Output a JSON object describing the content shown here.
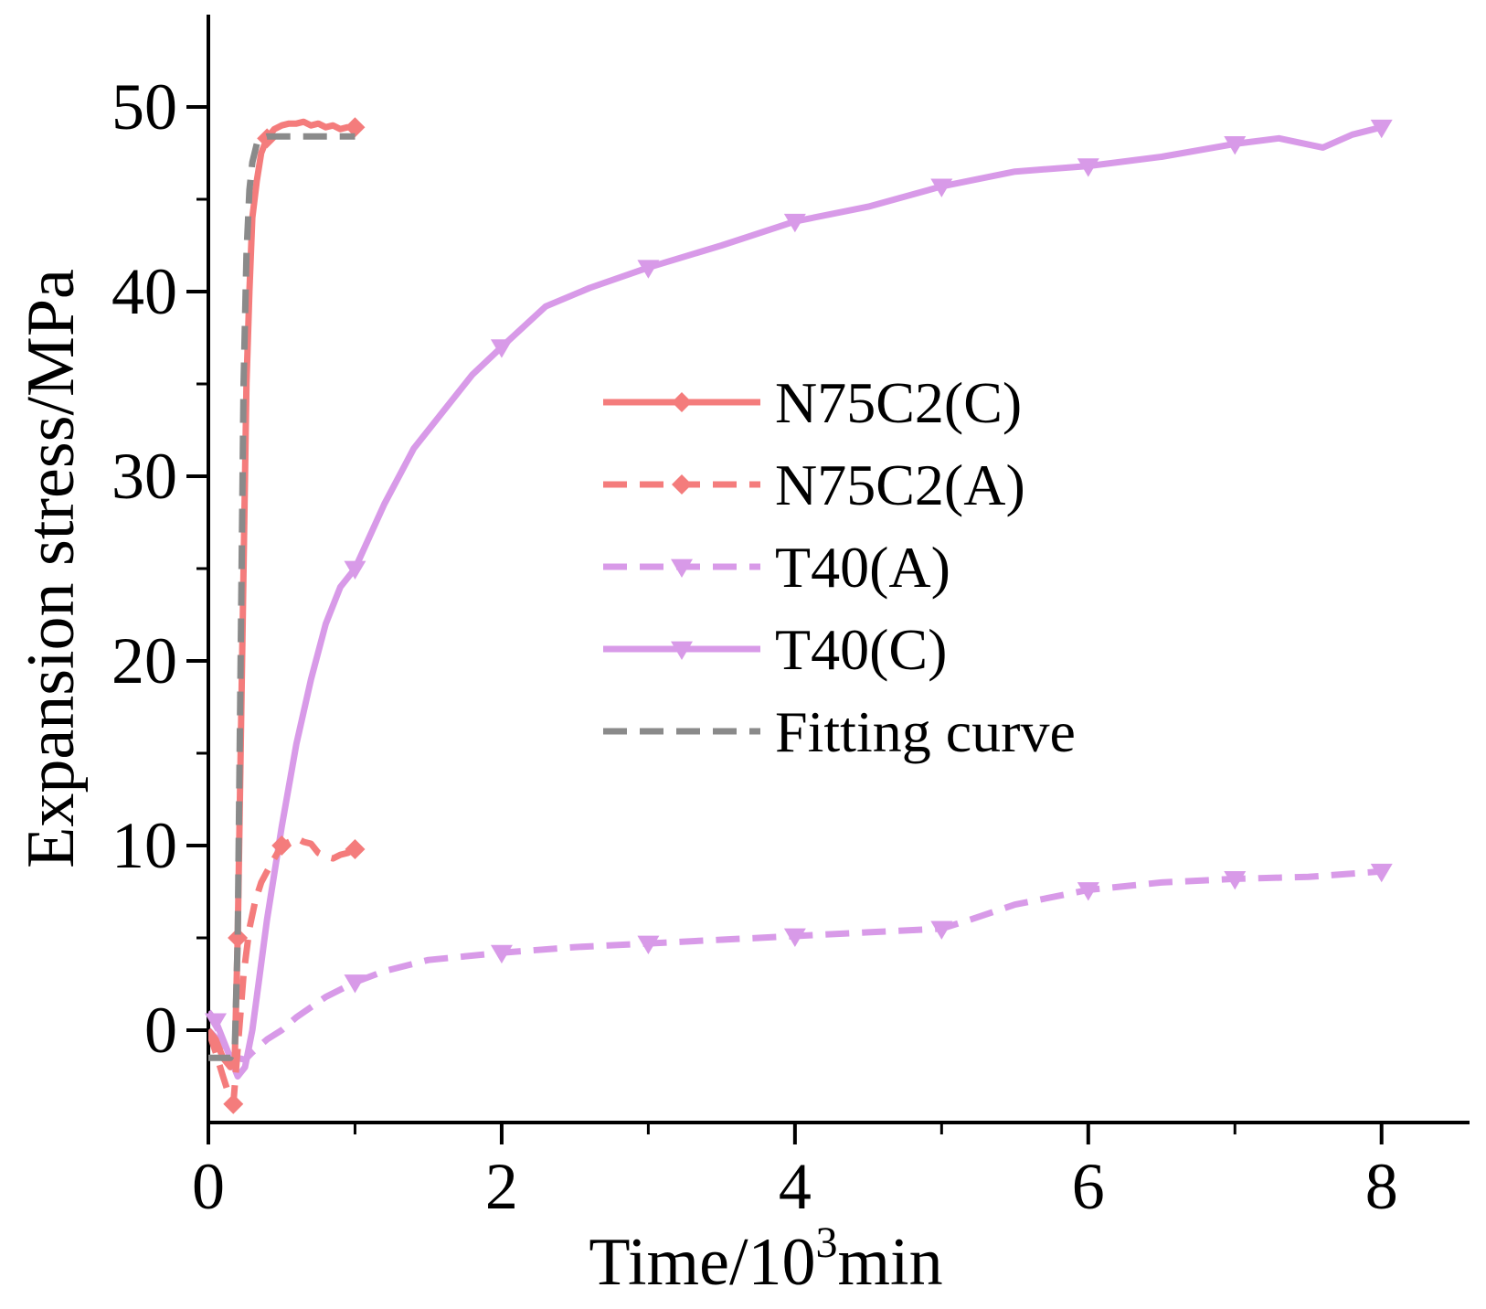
{
  "chart_data": {
    "type": "line",
    "title": "",
    "xlabel": "Time/10",
    "xlabel_superscript": "3",
    "xlabel_suffix": "min",
    "ylabel": "Expansion stress/MPa",
    "xlim": [
      0,
      8.6
    ],
    "ylim": [
      -5,
      55
    ],
    "x_ticks": [
      0,
      2,
      4,
      6,
      8
    ],
    "x_tick_labels": [
      "0",
      "2",
      "4",
      "6",
      "8"
    ],
    "y_ticks": [
      0,
      10,
      20,
      30,
      40,
      50
    ],
    "y_tick_labels": [
      "0",
      "10",
      "20",
      "30",
      "40",
      "50"
    ],
    "x_minor_ticks": [
      1,
      3,
      5,
      7
    ],
    "y_minor_ticks": [
      5,
      15,
      25,
      35,
      45
    ],
    "grid": false,
    "legend_position": "center-right",
    "series": [
      {
        "name": "N75C2(C)",
        "color": "#f47c7c",
        "dash": "solid",
        "marker": "diamond",
        "x": [
          0,
          0.05,
          0.1,
          0.15,
          0.18,
          0.2,
          0.22,
          0.24,
          0.26,
          0.28,
          0.3,
          0.33,
          0.36,
          0.4,
          0.45,
          0.5,
          0.55,
          0.6,
          0.65,
          0.7,
          0.75,
          0.8,
          0.85,
          0.9,
          0.95,
          1.0
        ],
        "y": [
          0,
          -0.5,
          -1.5,
          -2,
          -1.5,
          5,
          15,
          25,
          35,
          40,
          44,
          46,
          47.5,
          48.3,
          48.8,
          49,
          49.1,
          49.1,
          49.2,
          49.0,
          49.1,
          48.9,
          49.0,
          48.8,
          48.9,
          48.9
        ],
        "marker_x": [
          0.2,
          0.4,
          1.0
        ],
        "marker_y": [
          5,
          48.3,
          48.9
        ]
      },
      {
        "name": "N75C2(A)",
        "color": "#f47c7c",
        "dash": "dashed",
        "marker": "diamond",
        "x": [
          0,
          0.05,
          0.1,
          0.14,
          0.17,
          0.2,
          0.24,
          0.28,
          0.32,
          0.36,
          0.4,
          0.45,
          0.5,
          0.55,
          0.6,
          0.65,
          0.7,
          0.75,
          0.8,
          0.85,
          0.9,
          0.95,
          1.0
        ],
        "y": [
          0,
          -1.2,
          -2.5,
          -3.5,
          -4,
          -1,
          3,
          5.5,
          7,
          8,
          8.6,
          9.3,
          10,
          10.2,
          10.4,
          10.2,
          10.1,
          9.6,
          9.4,
          9.3,
          9.5,
          9.6,
          9.8
        ],
        "marker_x": [
          0.17,
          0.5,
          1.0
        ],
        "marker_y": [
          -4,
          10,
          9.8
        ]
      },
      {
        "name": "T40(A)",
        "color": "#d89ae8",
        "dash": "dashed",
        "marker": "triangle-down",
        "x": [
          0,
          0.1,
          0.2,
          0.25,
          0.3,
          0.4,
          0.5,
          0.6,
          0.8,
          1.0,
          1.2,
          1.5,
          2.0,
          2.5,
          3.0,
          3.5,
          4.0,
          4.5,
          5.0,
          5.2,
          5.5,
          6.0,
          6.5,
          7.0,
          7.5,
          8.0
        ],
        "y": [
          0,
          -0.8,
          -1.5,
          -1.6,
          -1.2,
          -0.5,
          0,
          0.7,
          1.8,
          2.6,
          3.2,
          3.8,
          4.2,
          4.5,
          4.7,
          4.9,
          5.1,
          5.3,
          5.5,
          6.0,
          6.8,
          7.6,
          8.0,
          8.2,
          8.3,
          8.6
        ],
        "marker_x": [
          1.0,
          2.0,
          3.0,
          4.0,
          5.0,
          6.0,
          7.0,
          8.0
        ],
        "marker_y": [
          2.6,
          4.2,
          4.7,
          5.1,
          5.5,
          7.6,
          8.2,
          8.6
        ]
      },
      {
        "name": "T40(C)",
        "color": "#d89ae8",
        "dash": "solid",
        "marker": "triangle-down",
        "x": [
          0,
          0.05,
          0.1,
          0.15,
          0.2,
          0.25,
          0.3,
          0.35,
          0.4,
          0.5,
          0.6,
          0.7,
          0.8,
          0.9,
          1.0,
          1.2,
          1.4,
          1.6,
          1.8,
          2.0,
          2.3,
          2.6,
          3.0,
          3.5,
          4.0,
          4.5,
          5.0,
          5.5,
          6.0,
          6.5,
          7.0,
          7.3,
          7.6,
          7.8,
          8.0
        ],
        "y": [
          1,
          0.5,
          -0.5,
          -1.5,
          -2.5,
          -2,
          0,
          3,
          6,
          11,
          15.5,
          19,
          22,
          24,
          25,
          28.5,
          31.5,
          33.5,
          35.5,
          37,
          39.2,
          40.2,
          41.3,
          42.5,
          43.8,
          44.6,
          45.7,
          46.5,
          46.8,
          47.3,
          48.0,
          48.3,
          47.8,
          48.5,
          48.9
        ],
        "marker_x": [
          0.05,
          1.0,
          2.0,
          3.0,
          4.0,
          5.0,
          6.0,
          7.0,
          8.0
        ],
        "marker_y": [
          0.5,
          25,
          37,
          41.3,
          43.8,
          45.7,
          46.8,
          48.0,
          48.9
        ]
      },
      {
        "name": "Fitting curve",
        "color": "#8a8a8a",
        "dash": "dashed",
        "marker": "none",
        "x": [
          0,
          0.1,
          0.15,
          0.18,
          0.2,
          0.22,
          0.24,
          0.26,
          0.28,
          0.3,
          0.33,
          0.36,
          0.4,
          0.5,
          0.6,
          0.8,
          1.0
        ],
        "y": [
          -1.5,
          -1.5,
          -1.5,
          -1.0,
          5,
          20,
          35,
          42,
          45.5,
          47,
          48,
          48.3,
          48.4,
          48.4,
          48.4,
          48.4,
          48.4
        ],
        "marker_x": [],
        "marker_y": []
      }
    ]
  }
}
